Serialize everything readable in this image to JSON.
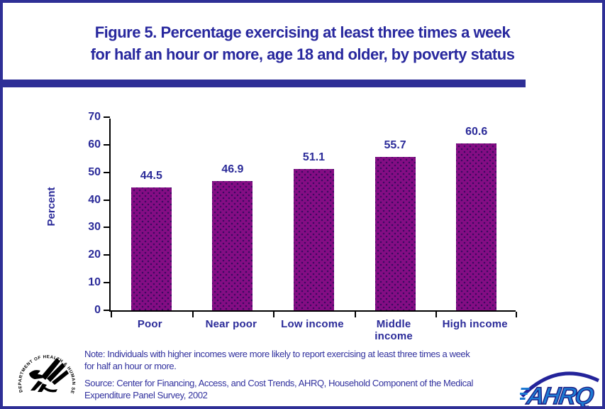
{
  "title": {
    "line1": "Figure 5. Percentage exercising at least three times a week",
    "line2": "for half an hour or more, age 18 and older, by poverty status"
  },
  "chart_data": {
    "type": "bar",
    "title": "Figure 5. Percentage exercising at least three times a week for half an hour or more, age 18 and older, by poverty status",
    "categories": [
      "Poor",
      "Near poor",
      "Low income",
      "Middle income",
      "High income"
    ],
    "category_labels_display": [
      "Poor",
      "Near poor",
      "Low income",
      "Middle\nincome",
      "High income"
    ],
    "values": [
      44.5,
      46.9,
      51.1,
      55.7,
      60.6
    ],
    "value_labels": [
      "44.5",
      "46.9",
      "51.1",
      "55.7",
      "60.6"
    ],
    "xlabel": "",
    "ylabel": "Percent",
    "ylim": [
      0,
      70
    ],
    "ytick_step": 10,
    "grid": false,
    "legend": false,
    "bar_color": "#840d84"
  },
  "footer": {
    "note": "Note: Individuals with higher incomes were more likely to report exercising at least three times a week\nfor half an hour or more.",
    "source": "Source: Center for Financing, Access, and Cost Trends, AHRQ, Household Component of the Medical\nExpenditure Panel Survey, 2002"
  },
  "logos": {
    "hhs_ring_text": "DEPARTMENT OF HEALTH & HUMAN SERVICES · USA",
    "ahrq_text": "AHRQ"
  },
  "colors": {
    "navy": "#2b2b99",
    "header_navy": "#2e2f96",
    "purple": "#840d84",
    "axis_black": "#000000",
    "ahrq_blue": "#1e7ad2"
  }
}
